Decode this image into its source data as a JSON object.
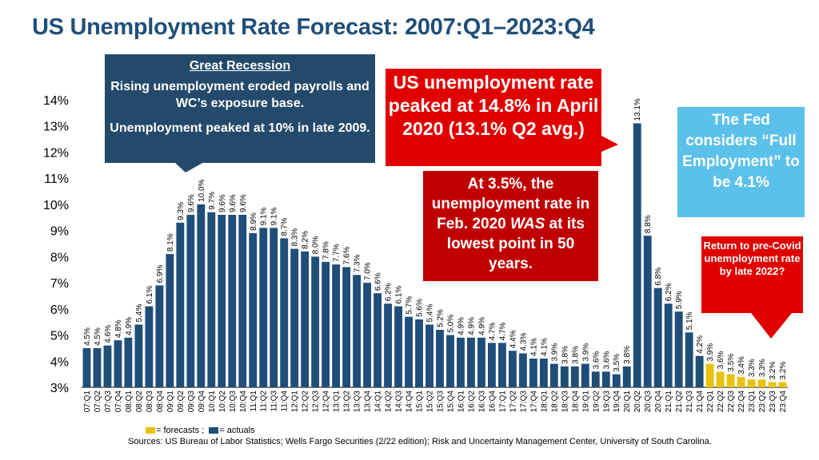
{
  "title": "US Unemployment Rate Forecast: 2007:Q1–2023:Q4",
  "chart_data": {
    "type": "bar",
    "ylim": [
      3,
      14
    ],
    "yticks": [
      "3%",
      "4%",
      "5%",
      "6%",
      "7%",
      "8%",
      "9%",
      "10%",
      "11%",
      "12%",
      "13%",
      "14%"
    ],
    "categories": [
      "07:Q1",
      "07:Q2",
      "07:Q3",
      "07:Q4",
      "08:Q1",
      "08:Q2",
      "08:Q3",
      "08:Q4",
      "09:Q1",
      "09:Q2",
      "09:Q3",
      "09:Q4",
      "10:Q1",
      "10:Q2",
      "10:Q3",
      "10:Q4",
      "11:Q1",
      "11:Q2",
      "11:Q3",
      "11:Q4",
      "12:Q1",
      "12:Q2",
      "12:Q3",
      "12:Q4",
      "13:Q1",
      "13:Q2",
      "13:Q3",
      "13:Q4",
      "14:Q1",
      "14:Q2",
      "14:Q3",
      "14:Q4",
      "15:Q1",
      "15:Q2",
      "15:Q3",
      "15:Q4",
      "16:Q1",
      "16:Q2",
      "16:Q3",
      "16:Q4",
      "17:Q1",
      "17:Q2",
      "17:Q3",
      "17:Q4",
      "18:Q1",
      "18:Q2",
      "18:Q3",
      "18:Q4",
      "19:Q1",
      "19:Q2",
      "19:Q3",
      "19:Q4",
      "20:Q1",
      "20:Q2",
      "20:Q3",
      "20:Q4",
      "21:Q1",
      "21:Q2",
      "21:Q3",
      "21:Q4",
      "22:Q1",
      "22:Q2",
      "22:Q3",
      "22:Q4",
      "23:Q1",
      "23:Q2",
      "23:Q3",
      "23:Q4"
    ],
    "values": [
      4.5,
      4.5,
      4.6,
      4.8,
      4.9,
      5.4,
      6.1,
      6.9,
      8.1,
      9.3,
      9.6,
      10.0,
      9.7,
      9.6,
      9.6,
      9.6,
      8.9,
      9.1,
      9.1,
      8.7,
      8.3,
      8.2,
      8.0,
      7.8,
      7.7,
      7.6,
      7.3,
      7.0,
      6.6,
      6.2,
      6.1,
      5.7,
      5.6,
      5.4,
      5.2,
      5.0,
      4.9,
      4.9,
      4.9,
      4.7,
      4.7,
      4.4,
      4.3,
      4.1,
      4.1,
      3.9,
      3.8,
      3.8,
      3.9,
      3.6,
      3.6,
      3.5,
      3.8,
      13.1,
      8.8,
      6.8,
      6.2,
      5.9,
      5.1,
      4.2,
      3.9,
      3.6,
      3.5,
      3.4,
      3.3,
      3.3,
      3.2,
      3.2
    ],
    "labels": [
      "4.5%",
      "4.5%",
      "4.6%",
      "4.8%",
      "4.9%",
      "5.4%",
      "6.1%",
      "6.9%",
      "8.1%",
      "9.3%",
      "9.6%",
      "10.0%",
      "9.7%",
      "9.6%",
      "9.6%",
      "9.6%",
      "8.9%",
      "9.1%",
      "9.1%",
      "8.7%",
      "8.3%",
      "8.2%",
      "8.0%",
      "7.8%",
      "7.7%",
      "7.6%",
      "7.3%",
      "7.0%",
      "6.6%",
      "6.2%",
      "6.1%",
      "5.7%",
      "5.6%",
      "5.4%",
      "5.2%",
      "5.0%",
      "4.9%",
      "4.9%",
      "4.9%",
      "4.7%",
      "4.7%",
      "4.4%",
      "4.3%",
      "4.1%",
      "4.1%",
      "3.9%",
      "3.8%",
      "3.8%",
      "3.9%",
      "3.6%",
      "3.6%",
      "3.5%",
      "3.8%",
      "13.1%",
      "8.8%",
      "6.8%",
      "6.2%",
      "5.9%",
      "5.1%",
      "4.2%",
      "3.9%",
      "3.6%",
      "3.5%",
      "3.4%",
      "3.3%",
      "3.3%",
      "3.2%",
      "3.2%"
    ],
    "forecast_start_index": 60,
    "colors": {
      "actual": "#1f4e79",
      "forecast": "#e8c20c"
    }
  },
  "callouts": {
    "recession": {
      "heading": "Great Recession",
      "line1": "Rising unemployment eroded payrolls and WC’s exposure base.",
      "line2": "Unemployment peaked at 10% in late 2009."
    },
    "peak": "US unemployment rate peaked at 14.8% in April 2020 (13.1% Q2 avg.)",
    "low_prefix": "At 3.5%, the unemployment rate in Feb. 2020 ",
    "low_emph": "WAS",
    "low_suffix": " at its lowest point in 50 years.",
    "fed": "The Fed considers “Full Employment” to be 4.1%",
    "precovid": "Return to pre-Covid unemployment rate by late 2022?"
  },
  "legend": {
    "forecast_label": "= forecasts ;",
    "actual_label": "= actuals"
  },
  "source": "Sources: US Bureau of Labor Statistics; Wells Fargo Securities (2/22 edition); Risk and Uncertainty Management Center, University of South Carolina."
}
